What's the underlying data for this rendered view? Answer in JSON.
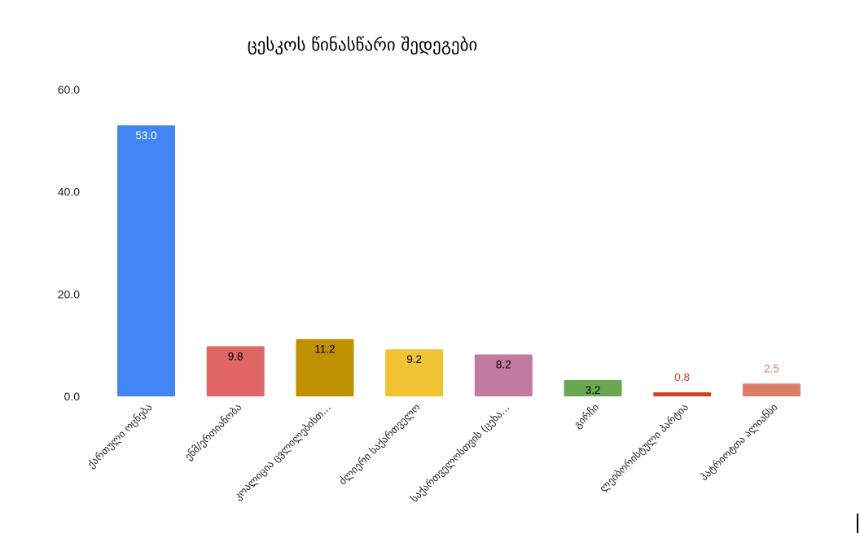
{
  "chart_data": {
    "type": "bar",
    "title": "ცესკოს წინასწარი შედეგები",
    "xlabel": "",
    "ylabel": "",
    "ylim": [
      0,
      60
    ],
    "yticks": [
      "0.0",
      "20.0",
      "40.0",
      "60.0"
    ],
    "grid": false,
    "legend": "none",
    "categories": [
      "ქართული ოცნება",
      "ენმ/ერთიანობა",
      "კოალიცია ცვლილებისთ…",
      "ძლიერი საქართველო",
      "საქართველოსთვის (ცეხა…",
      "გირჩი",
      "ლეიბორისტული პარტია",
      "პატრიოტთა ალიანსი"
    ],
    "values": [
      53.0,
      9.8,
      11.2,
      9.2,
      8.2,
      3.2,
      0.8,
      2.5
    ],
    "value_labels": [
      "53.0",
      "9.8",
      "11.2",
      "9.2",
      "8.2",
      "3.2",
      "0.8",
      "2.5"
    ],
    "colors": [
      "#4285f4",
      "#e06666",
      "#bf9000",
      "#f1c232",
      "#c27ba0",
      "#6aa84f",
      "#cc4125",
      "#dd7e6b"
    ],
    "label_colors": [
      "#ffffff",
      "#000000",
      "#000000",
      "#000000",
      "#000000",
      "#000000",
      "#cc4125",
      "#dd7e6b"
    ]
  }
}
